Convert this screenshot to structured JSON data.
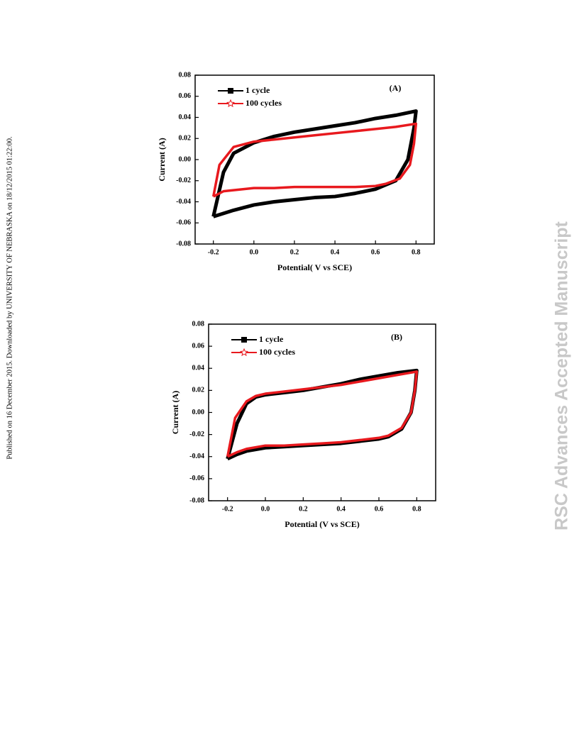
{
  "page": {
    "side_note": "Published on 16 December 2015. Downloaded by UNIVERSITY OF NEBRASKA on 18/12/2015 01:22:00.",
    "watermark": "RSC Advances Accepted Manuscript"
  },
  "chart_data": [
    {
      "type": "line",
      "annotation": "(A)",
      "x_label": "Potential(  V vs SCE)",
      "y_label": "Current (A)",
      "xlim": [
        -0.29,
        0.89
      ],
      "ylim": [
        -0.08,
        0.08
      ],
      "xticks": [
        -0.2,
        {
          "value": 0,
          "label": "0.0"
        },
        0.2,
        0.4,
        0.6,
        0.8
      ],
      "yticks": [
        -0.08,
        -0.06,
        -0.04,
        -0.02,
        {
          "value": 0,
          "label": "0.00"
        },
        0.02,
        0.04,
        0.06,
        0.08
      ],
      "series": [
        {
          "name": "1 cycle",
          "color": "#000000",
          "marker": "square",
          "x": [
            -0.2,
            -0.15,
            -0.1,
            0.0,
            0.1,
            0.2,
            0.3,
            0.4,
            0.5,
            0.6,
            0.7,
            0.8,
            0.79,
            0.76,
            0.7,
            0.6,
            0.5,
            0.4,
            0.3,
            0.2,
            0.1,
            0.0,
            -0.1,
            -0.2
          ],
          "values": [
            -0.054,
            -0.012,
            0.006,
            0.016,
            0.022,
            0.026,
            0.029,
            0.032,
            0.035,
            0.039,
            0.042,
            0.046,
            0.03,
            0.0,
            -0.02,
            -0.028,
            -0.032,
            -0.035,
            -0.036,
            -0.038,
            -0.04,
            -0.043,
            -0.048,
            -0.054
          ]
        },
        {
          "name": "100 cycles",
          "color": "#e8191e",
          "marker": "star",
          "x": [
            -0.2,
            -0.17,
            -0.1,
            0.0,
            0.1,
            0.2,
            0.3,
            0.4,
            0.5,
            0.6,
            0.7,
            0.8,
            0.79,
            0.77,
            0.72,
            0.65,
            0.6,
            0.5,
            0.4,
            0.3,
            0.2,
            0.1,
            0.0,
            -0.1,
            -0.15,
            -0.2
          ],
          "values": [
            -0.035,
            -0.005,
            0.012,
            0.017,
            0.019,
            0.021,
            0.023,
            0.025,
            0.027,
            0.029,
            0.031,
            0.034,
            0.015,
            -0.005,
            -0.018,
            -0.023,
            -0.025,
            -0.026,
            -0.026,
            -0.026,
            -0.026,
            -0.027,
            -0.027,
            -0.029,
            -0.03,
            -0.035
          ]
        }
      ]
    },
    {
      "type": "line",
      "annotation": "(B)",
      "x_label": "Potential (V vs SCE)",
      "y_label": "Current (A)",
      "xlim": [
        -0.3,
        0.9
      ],
      "ylim": [
        -0.08,
        0.08
      ],
      "xticks": [
        -0.2,
        {
          "value": 0,
          "label": "0.0"
        },
        0.2,
        0.4,
        0.6,
        0.8
      ],
      "yticks": [
        -0.08,
        -0.06,
        -0.04,
        -0.02,
        {
          "value": 0,
          "label": "0.00"
        },
        0.02,
        0.04,
        0.06,
        0.08
      ],
      "series": [
        {
          "name": "1 cycle",
          "color": "#000000",
          "marker": "square",
          "x": [
            -0.2,
            -0.15,
            -0.1,
            -0.05,
            0.0,
            0.1,
            0.2,
            0.3,
            0.4,
            0.5,
            0.6,
            0.7,
            0.8,
            0.79,
            0.77,
            0.72,
            0.65,
            0.6,
            0.5,
            0.4,
            0.3,
            0.2,
            0.1,
            0.0,
            -0.1,
            -0.15,
            -0.2
          ],
          "values": [
            -0.042,
            -0.01,
            0.008,
            0.014,
            0.016,
            0.018,
            0.02,
            0.023,
            0.026,
            0.03,
            0.033,
            0.036,
            0.038,
            0.02,
            0.0,
            -0.015,
            -0.022,
            -0.024,
            -0.026,
            -0.028,
            -0.029,
            -0.03,
            -0.031,
            -0.032,
            -0.035,
            -0.038,
            -0.042
          ]
        },
        {
          "name": "100 cycles",
          "color": "#e8191e",
          "marker": "star",
          "x": [
            -0.2,
            -0.16,
            -0.1,
            -0.05,
            0.0,
            0.1,
            0.2,
            0.3,
            0.4,
            0.5,
            0.6,
            0.7,
            0.8,
            0.79,
            0.77,
            0.72,
            0.65,
            0.6,
            0.5,
            0.4,
            0.3,
            0.2,
            0.1,
            0.0,
            -0.1,
            -0.15,
            -0.2
          ],
          "values": [
            -0.04,
            -0.005,
            0.01,
            0.015,
            0.017,
            0.019,
            0.021,
            0.023,
            0.025,
            0.028,
            0.031,
            0.034,
            0.037,
            0.02,
            0.0,
            -0.014,
            -0.021,
            -0.023,
            -0.025,
            -0.027,
            -0.028,
            -0.029,
            -0.03,
            -0.03,
            -0.033,
            -0.036,
            -0.04
          ]
        }
      ]
    }
  ]
}
